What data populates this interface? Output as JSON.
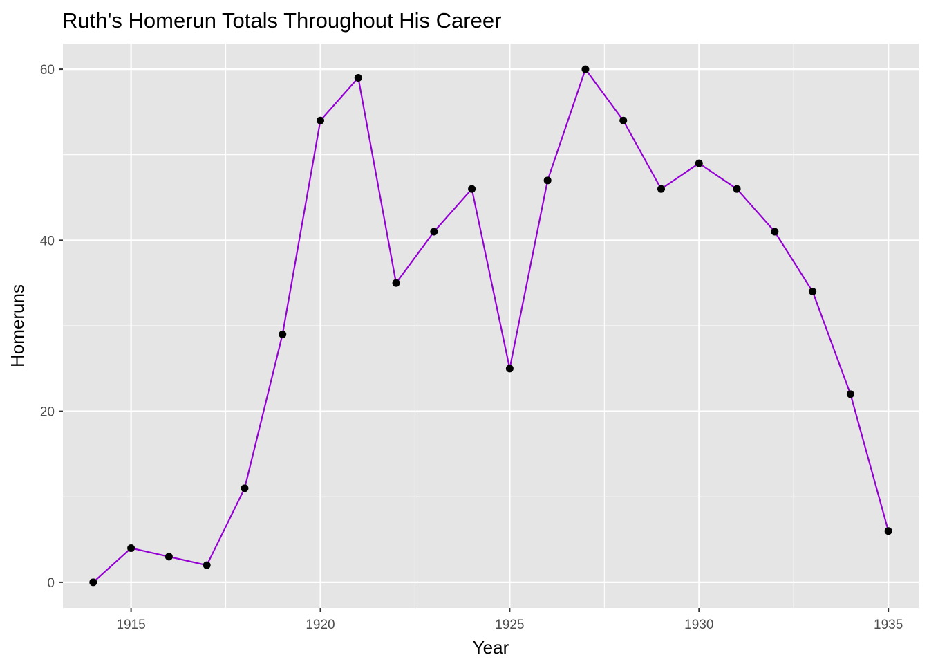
{
  "chart_data": {
    "type": "line",
    "title": "Ruth's Homerun Totals Throughout His Career",
    "xlabel": "Year",
    "ylabel": "Homeruns",
    "xlim": [
      1913.2,
      1935.8
    ],
    "ylim": [
      -3,
      63
    ],
    "x_ticks": [
      1915,
      1920,
      1925,
      1930,
      1935
    ],
    "y_ticks": [
      0,
      20,
      40,
      60
    ],
    "grid": true,
    "series": [
      {
        "x": [
          1914,
          1915,
          1916,
          1917,
          1918,
          1919,
          1920,
          1921,
          1922,
          1923,
          1924,
          1925,
          1926,
          1927,
          1928,
          1929,
          1930,
          1931,
          1932,
          1933,
          1934,
          1935
        ],
        "values": [
          0,
          4,
          3,
          2,
          11,
          29,
          54,
          59,
          35,
          41,
          46,
          25,
          47,
          60,
          54,
          46,
          49,
          46,
          41,
          34,
          22,
          6
        ],
        "line_color": "#9400D3",
        "point_color": "#000000"
      }
    ],
    "panel_background": "#E5E5E5",
    "grid_color": "#FFFFFF"
  }
}
